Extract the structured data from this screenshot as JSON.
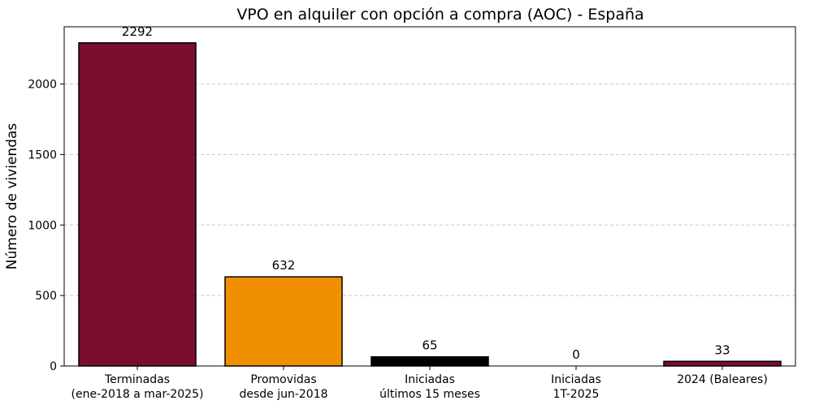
{
  "chart_data": {
    "type": "bar",
    "title": "VPO en alquiler con opción a compra (AOC) - España",
    "xlabel": "",
    "ylabel": "Número de viviendas",
    "categories": [
      [
        "Terminadas",
        "(ene-2018 a mar-2025)"
      ],
      [
        "Promovidas",
        "desde jun-2018"
      ],
      [
        "Iniciadas",
        "últimos 15 meses"
      ],
      [
        "Iniciadas",
        "1T-2025"
      ],
      [
        "2024 (Baleares)"
      ]
    ],
    "values": [
      2292,
      632,
      65,
      0,
      33
    ],
    "colors": [
      "#7a0e2c",
      "#f09000",
      "#000000",
      "#7a0e2c",
      "#7a0e2c"
    ],
    "edge_color": "#000000",
    "ylim": [
      0,
      2406
    ],
    "yticks": [
      0,
      500,
      1000,
      1500,
      2000
    ],
    "grid": "y-dashed",
    "legend": "none"
  }
}
